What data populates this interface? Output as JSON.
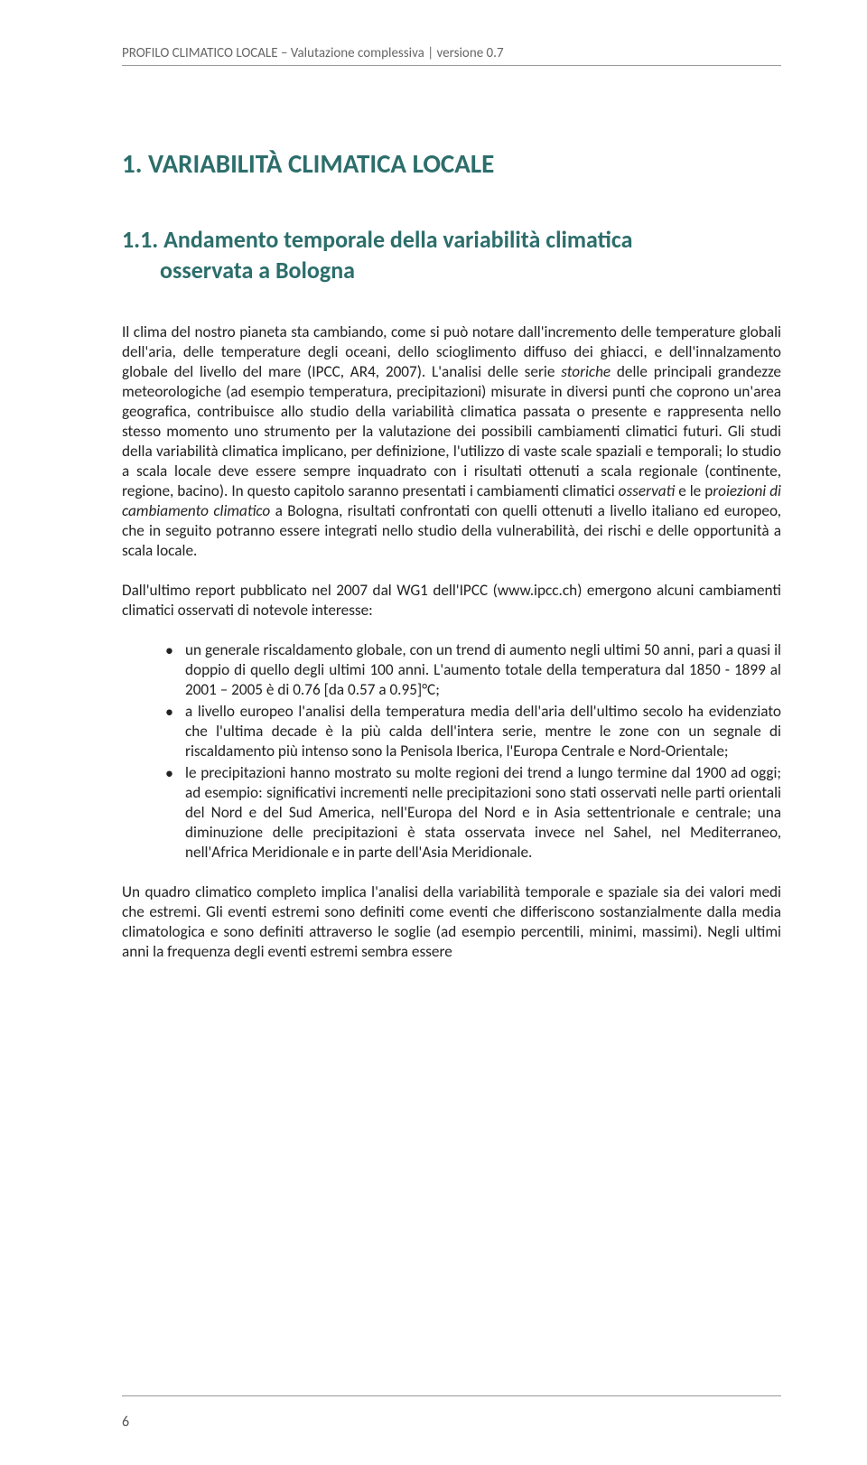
{
  "header": {
    "text": "PROFILO CLIMATICO LOCALE – Valutazione complessiva | versione 0.7",
    "color": "#666666",
    "border_color": "#999999"
  },
  "h1": {
    "text": "1. VARIABILITÀ CLIMATICA LOCALE",
    "color": "#2c6e6b",
    "fontsize": 29
  },
  "h2": {
    "line1": "1.1. Andamento temporale della variabilità climatica",
    "line2": "osservata a Bologna",
    "color": "#2c6e6b",
    "fontsize": 26
  },
  "paragraphs": {
    "p1_html": "Il clima del nostro pianeta sta cambiando, come si può notare dall'incremento delle temperature globali dell'aria, delle temperature degli oceani, dello scioglimento diffuso dei ghiacci, e dell'innalzamento globale del livello del mare (IPCC, AR4, 2007). L'analisi delle serie <em>storiche</em> delle principali grandezze meteorologiche (ad esempio temperatura, precipitazioni) misurate in diversi punti che coprono un'area geografica, contribuisce allo studio della variabilità climatica passata o presente e rappresenta nello stesso momento uno strumento per la valutazione dei possibili cambiamenti climatici futuri. Gli studi della variabilità climatica implicano, per definizione, l'utilizzo di vaste scale spaziali e temporali; lo studio a scala locale deve essere sempre inquadrato con i risultati ottenuti a scala regionale (continente, regione, bacino). In questo capitolo saranno presentati i cambiamenti climatici <em>osservati</em> e le p<em>roiezioni di cambiamento climatico</em> a Bologna, risultati confrontati con quelli ottenuti a livello italiano ed europeo, che in seguito potranno essere integrati nello studio della vulnerabilità, dei rischi e delle opportunità a scala locale.",
    "p2": "Dall'ultimo report pubblicato nel 2007 dal WG1 dell'IPCC (www.ipcc.ch) emergono alcuni cambiamenti climatici osservati di notevole interesse:",
    "p3": "Un quadro climatico completo implica l'analisi della variabilità temporale e spaziale sia dei valori medi che estremi. Gli eventi estremi sono definiti come eventi che differiscono sostanzialmente dalla media climatologica e sono definiti attraverso le soglie (ad esempio percentili, minimi, massimi). Negli ultimi anni la frequenza degli eventi estremi sembra essere"
  },
  "bullets": [
    "un generale riscaldamento globale, con un trend di aumento negli ultimi 50 anni, pari a quasi il doppio di quello degli ultimi 100 anni. L'aumento totale della temperatura dal 1850 - 1899 al 2001 – 2005 è di 0.76 [da 0.57 a 0.95]°C;",
    "a livello europeo l'analisi della temperatura media dell'aria dell'ultimo secolo ha evidenziato che l'ultima decade è la più calda dell'intera serie, mentre le zone con un segnale di riscaldamento più intenso sono la Penisola Iberica, l'Europa Centrale e Nord-Orientale;",
    "le precipitazioni hanno mostrato su molte regioni dei trend a lungo termine dal 1900 ad oggi; ad esempio: significativi incrementi nelle precipitazioni sono stati osservati nelle parti orientali del Nord e del Sud America, nell'Europa del Nord e in Asia settentrionale e centrale; una diminuzione delle precipitazioni è stata osservata invece nel Sahel, nel Mediterraneo, nell'Africa Meridionale e in parte dell'Asia Meridionale."
  ],
  "page_number": "6",
  "style": {
    "body_text_color": "#222222",
    "body_fontsize": 17.2,
    "background": "#ffffff"
  }
}
